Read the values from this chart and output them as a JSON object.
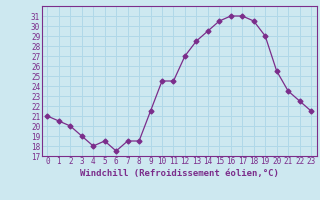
{
  "x": [
    0,
    1,
    2,
    3,
    4,
    5,
    6,
    7,
    8,
    9,
    10,
    11,
    12,
    13,
    14,
    15,
    16,
    17,
    18,
    19,
    20,
    21,
    22,
    23
  ],
  "y": [
    21.0,
    20.5,
    20.0,
    19.0,
    18.0,
    18.5,
    17.5,
    18.5,
    18.5,
    21.5,
    24.5,
    24.5,
    27.0,
    28.5,
    29.5,
    30.5,
    31.0,
    31.0,
    30.5,
    29.0,
    25.5,
    23.5,
    22.5,
    21.5
  ],
  "line_color": "#7b2d8b",
  "marker": "D",
  "markersize": 2.5,
  "bg_color": "#cde8f0",
  "grid_color": "#b0d8e8",
  "xlabel": "Windchill (Refroidissement éolien,°C)",
  "ylim": [
    17,
    32
  ],
  "xlim": [
    -0.5,
    23.5
  ],
  "yticks": [
    17,
    18,
    19,
    20,
    21,
    22,
    23,
    24,
    25,
    26,
    27,
    28,
    29,
    30,
    31
  ],
  "xticks": [
    0,
    1,
    2,
    3,
    4,
    5,
    6,
    7,
    8,
    9,
    10,
    11,
    12,
    13,
    14,
    15,
    16,
    17,
    18,
    19,
    20,
    21,
    22,
    23
  ],
  "tick_fontsize": 5.5,
  "xlabel_fontsize": 6.5,
  "spine_color": "#7b2d8b"
}
